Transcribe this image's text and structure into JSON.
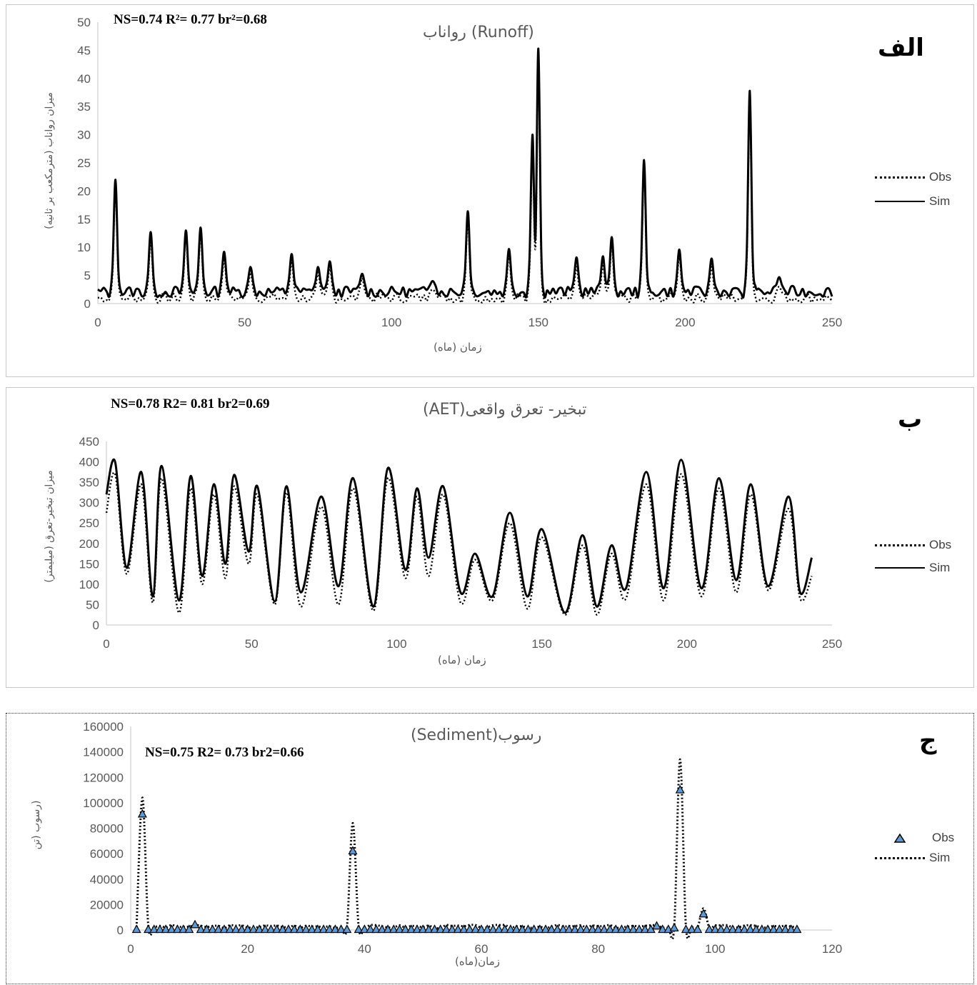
{
  "panels": {
    "a": {
      "letter": "الف",
      "title": "(Runoff) رواناب",
      "stats": "NS=0.74  R²= 0.77 br²=0.68",
      "xlabel": "زمان (ماه)",
      "ylabel": "میزان رواناب (مترمکعب بر ثانیه)"
    },
    "b": {
      "letter": "ب",
      "title": "تبخیر- تعرق واقعی(AET)",
      "stats": "NS=0.78  R2= 0.81  br2=0.69",
      "xlabel": "زمان (ماه)",
      "ylabel": "میزان تبخیر-تعرق (میلیمتر)"
    },
    "c": {
      "letter": "ج",
      "title": "رسوب(Sediment)",
      "stats": "NS=0.75  R2= 0.73  br2=0.66",
      "xlabel": "زمان(ماه)",
      "ylabel": "(رسوب (تن"
    }
  },
  "legend": {
    "obs": "Obs",
    "sim": "Sim"
  },
  "chart_data": [
    {
      "type": "line",
      "title": "(Runoff) رواناب",
      "xlabel": "زمان (ماه)",
      "ylabel": "میزان رواناب (مترمکعب بر ثانیه)",
      "xlim": [
        0,
        250
      ],
      "ylim": [
        0,
        50
      ],
      "xticks": [
        0,
        50,
        100,
        150,
        200,
        250
      ],
      "yticks": [
        0,
        5,
        10,
        15,
        20,
        25,
        30,
        35,
        40,
        45,
        50
      ],
      "legend_position": "right",
      "series": [
        {
          "name": "Sim",
          "style": "solid",
          "base": [
            1.2,
            3.0
          ],
          "peaks": [
            [
              6,
              22
            ],
            [
              18,
              12.7
            ],
            [
              30,
              13
            ],
            [
              35,
              13.5
            ],
            [
              43,
              9.2
            ],
            [
              52,
              6.5
            ],
            [
              66,
              8.8
            ],
            [
              75,
              6.5
            ],
            [
              79,
              7.5
            ],
            [
              90,
              5.3
            ],
            [
              114,
              4
            ],
            [
              126,
              16.4
            ],
            [
              140,
              9.7
            ],
            [
              148,
              30
            ],
            [
              150,
              45.3
            ],
            [
              163,
              8.2
            ],
            [
              172,
              8.4
            ],
            [
              175,
              11.8
            ],
            [
              186,
              25.5
            ],
            [
              198,
              9.6
            ],
            [
              209,
              8
            ],
            [
              222,
              37.8
            ],
            [
              232,
              4.7
            ]
          ]
        },
        {
          "name": "Obs",
          "style": "dotted",
          "base": [
            0.2,
            1.8
          ],
          "peaks": [
            [
              6,
              21
            ],
            [
              18,
              11.5
            ],
            [
              30,
              12
            ],
            [
              35,
              12.5
            ],
            [
              43,
              8
            ],
            [
              52,
              5.5
            ],
            [
              66,
              7.5
            ],
            [
              75,
              5.5
            ],
            [
              79,
              6.5
            ],
            [
              90,
              4.5
            ],
            [
              114,
              2.5
            ],
            [
              126,
              15
            ],
            [
              140,
              8.5
            ],
            [
              148,
              27
            ],
            [
              150,
              42
            ],
            [
              163,
              6.5
            ],
            [
              172,
              7
            ],
            [
              175,
              10.5
            ],
            [
              186,
              24
            ],
            [
              198,
              8.5
            ],
            [
              209,
              6.5
            ],
            [
              222,
              36
            ],
            [
              232,
              3
            ]
          ]
        }
      ]
    },
    {
      "type": "line",
      "title": "تبخیر- تعرق واقعی(AET)",
      "xlabel": "زمان (ماه)",
      "ylabel": "میزان تبخیر-تعرق (میلیمتر)",
      "xlim": [
        0,
        250
      ],
      "ylim": [
        0,
        450
      ],
      "xticks": [
        0,
        50,
        100,
        150,
        200,
        250
      ],
      "yticks": [
        0,
        50,
        100,
        150,
        200,
        250,
        300,
        350,
        400,
        450
      ],
      "legend_position": "right",
      "series": [
        {
          "name": "Sim",
          "style": "solid",
          "points": [
            [
              0,
              320
            ],
            [
              3,
              400
            ],
            [
              7,
              140
            ],
            [
              12,
              375
            ],
            [
              16,
              70
            ],
            [
              19,
              390
            ],
            [
              25,
              60
            ],
            [
              29,
              365
            ],
            [
              33,
              120
            ],
            [
              37,
              345
            ],
            [
              41,
              150
            ],
            [
              44,
              368
            ],
            [
              49,
              180
            ],
            [
              52,
              340
            ],
            [
              58,
              58
            ],
            [
              62,
              340
            ],
            [
              67,
              80
            ],
            [
              74,
              315
            ],
            [
              80,
              95
            ],
            [
              85,
              360
            ],
            [
              92,
              45
            ],
            [
              97,
              385
            ],
            [
              103,
              135
            ],
            [
              107,
              335
            ],
            [
              111,
              165
            ],
            [
              116,
              340
            ],
            [
              122,
              80
            ],
            [
              127,
              175
            ],
            [
              133,
              70
            ],
            [
              139,
              275
            ],
            [
              145,
              70
            ],
            [
              150,
              235
            ],
            [
              158,
              30
            ],
            [
              164,
              220
            ],
            [
              169,
              45
            ],
            [
              174,
              195
            ],
            [
              179,
              90
            ],
            [
              186,
              375
            ],
            [
              192,
              90
            ],
            [
              198,
              405
            ],
            [
              205,
              90
            ],
            [
              211,
              360
            ],
            [
              217,
              110
            ],
            [
              222,
              345
            ],
            [
              228,
              95
            ],
            [
              235,
              315
            ],
            [
              239,
              80
            ],
            [
              243,
              165
            ]
          ]
        },
        {
          "name": "Obs",
          "style": "dotted",
          "points": [
            [
              0,
              275
            ],
            [
              3,
              370
            ],
            [
              7,
              125
            ],
            [
              12,
              345
            ],
            [
              16,
              55
            ],
            [
              19,
              360
            ],
            [
              25,
              30
            ],
            [
              29,
              335
            ],
            [
              33,
              100
            ],
            [
              37,
              320
            ],
            [
              41,
              115
            ],
            [
              44,
              340
            ],
            [
              49,
              150
            ],
            [
              52,
              320
            ],
            [
              58,
              50
            ],
            [
              62,
              325
            ],
            [
              67,
              45
            ],
            [
              74,
              290
            ],
            [
              80,
              50
            ],
            [
              85,
              335
            ],
            [
              92,
              35
            ],
            [
              97,
              360
            ],
            [
              103,
              115
            ],
            [
              107,
              315
            ],
            [
              111,
              120
            ],
            [
              116,
              320
            ],
            [
              122,
              55
            ],
            [
              127,
              160
            ],
            [
              133,
              60
            ],
            [
              139,
              250
            ],
            [
              145,
              40
            ],
            [
              150,
              215
            ],
            [
              158,
              25
            ],
            [
              164,
              195
            ],
            [
              169,
              25
            ],
            [
              174,
              175
            ],
            [
              179,
              65
            ],
            [
              186,
              345
            ],
            [
              192,
              60
            ],
            [
              198,
              370
            ],
            [
              205,
              70
            ],
            [
              211,
              335
            ],
            [
              217,
              80
            ],
            [
              222,
              320
            ],
            [
              228,
              85
            ],
            [
              235,
              285
            ],
            [
              239,
              65
            ],
            [
              243,
              120
            ]
          ]
        }
      ]
    },
    {
      "type": "line",
      "title": "رسوب(Sediment)",
      "xlabel": "زمان(ماه)",
      "ylabel": "(رسوب (تن",
      "xlim": [
        0,
        120
      ],
      "ylim": [
        0,
        160000
      ],
      "xticks": [
        0,
        20,
        40,
        60,
        80,
        100,
        120
      ],
      "yticks": [
        0,
        20000,
        40000,
        60000,
        80000,
        100000,
        120000,
        140000,
        160000
      ],
      "legend_position": "right",
      "obs_markers": {
        "name": "Obs",
        "marker": "triangle",
        "color": "#5b9bd5",
        "months": [
          1,
          114
        ],
        "baseline": 300,
        "special": [
          [
            2,
            91000
          ],
          [
            11,
            4000
          ],
          [
            38,
            62000
          ],
          [
            90,
            3000
          ],
          [
            93,
            1500
          ],
          [
            94,
            110000
          ],
          [
            98,
            12500
          ]
        ]
      },
      "sim_series": {
        "name": "Sim",
        "style": "dotted",
        "peaks": [
          [
            2,
            104000
          ],
          [
            38,
            84000
          ],
          [
            94,
            134000
          ],
          [
            98,
            17000
          ]
        ],
        "baseline": 1500
      }
    }
  ]
}
